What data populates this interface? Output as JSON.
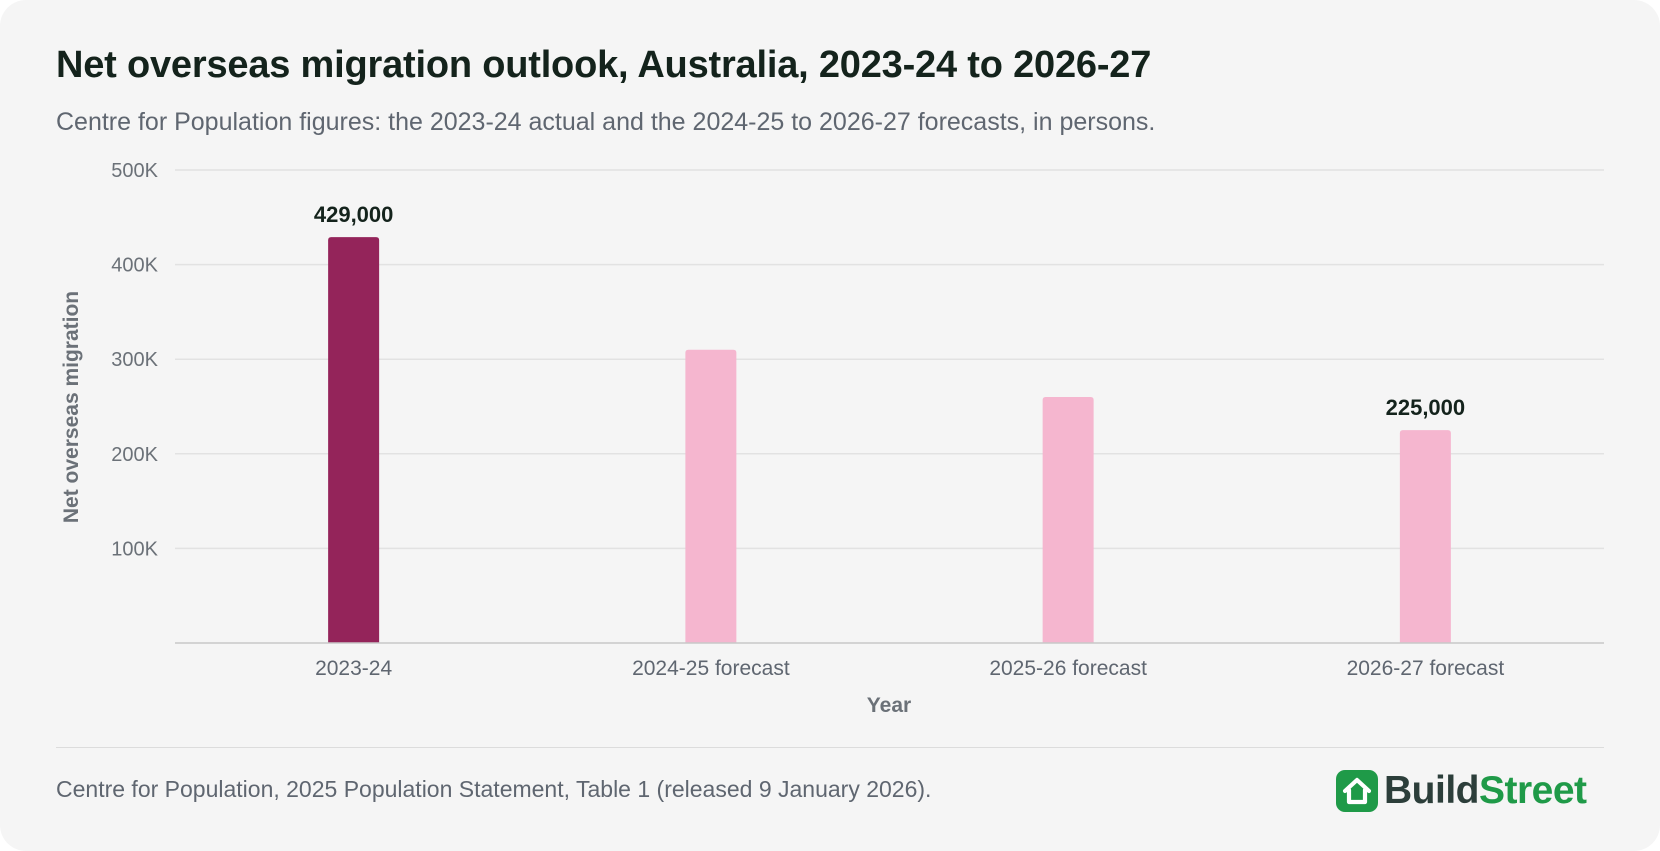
{
  "header": {
    "title": "Net overseas migration outlook, Australia, 2023-24 to 2026-27",
    "subtitle": "Centre for Population figures: the 2023-24 actual and the 2024-25 to 2026-27 forecasts, in persons."
  },
  "chart_data": {
    "type": "bar",
    "title": "Net overseas migration outlook, Australia, 2023-24 to 2026-27",
    "subtitle": "Centre for Population figures: the 2023-24 actual and the 2024-25 to 2026-27 forecasts, in persons.",
    "categories": [
      "2023-24",
      "2024-25 forecast",
      "2025-26 forecast",
      "2026-27 forecast"
    ],
    "values": [
      429000,
      310000,
      260000,
      225000
    ],
    "data_labels": [
      "429,000",
      "",
      "",
      "225,000"
    ],
    "bar_colors": [
      "#94245a",
      "#f5b6cf",
      "#f5b6cf",
      "#f5b6cf"
    ],
    "xlabel": "Year",
    "ylabel": "Net overseas migration",
    "ylim": [
      0,
      500000
    ],
    "yticks": [
      100000,
      200000,
      300000,
      400000,
      500000
    ],
    "ytick_labels": [
      "100K",
      "200K",
      "300K",
      "400K",
      "500K"
    ],
    "grid": true,
    "legend": false
  },
  "footer": {
    "source": "Centre for Population, 2025 Population Statement, Table 1 (released 9 January 2026).",
    "logo_part_a": "Build",
    "logo_part_b": "Street",
    "brand_color": "#1f9a48",
    "logo_icon": "house-icon"
  }
}
